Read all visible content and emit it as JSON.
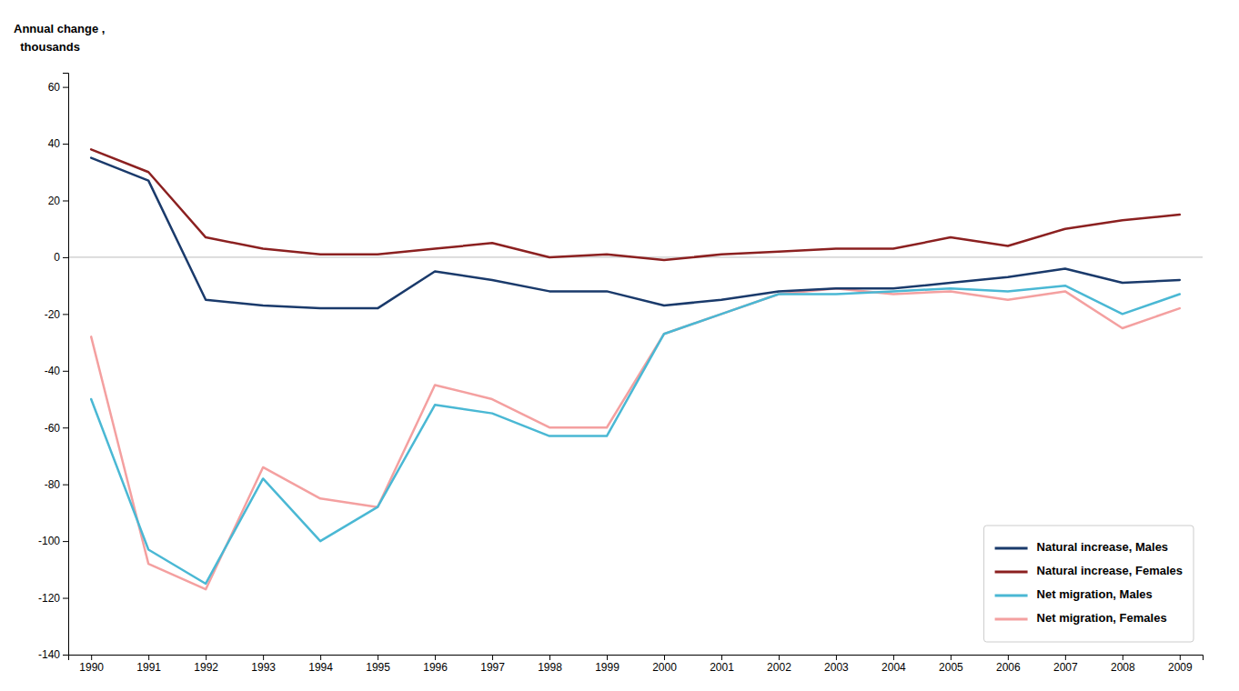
{
  "chart_data": {
    "type": "line",
    "ylabel": [
      "Annual change ,",
      "  thousands"
    ],
    "x": [
      1990,
      1991,
      1992,
      1993,
      1994,
      1995,
      1996,
      1997,
      1998,
      1999,
      2000,
      2001,
      2002,
      2003,
      2004,
      2005,
      2006,
      2007,
      2008,
      2009
    ],
    "series": [
      {
        "name": "Natural increase, Males",
        "color": "#1a3a6b",
        "values": [
          35,
          27,
          -15,
          -17,
          -18,
          -18,
          -5,
          -8,
          -12,
          -12,
          -17,
          -15,
          -12,
          -11,
          -11,
          -9,
          -7,
          -4,
          -9,
          -8
        ]
      },
      {
        "name": "Natural increase, Females",
        "color": "#8b2020",
        "values": [
          38,
          30,
          7,
          3,
          1,
          1,
          3,
          5,
          0,
          1,
          -1,
          1,
          2,
          3,
          3,
          7,
          4,
          10,
          13,
          15
        ]
      },
      {
        "name": "Net migration, Males",
        "color": "#4ab8d4",
        "values": [
          -50,
          -103,
          -115,
          -78,
          -100,
          -88,
          -52,
          -55,
          -63,
          -63,
          -27,
          -20,
          -13,
          -13,
          -12,
          -11,
          -12,
          -10,
          -20,
          -13
        ]
      },
      {
        "name": "Net migration, Females",
        "color": "#f4a0a0",
        "values": [
          -28,
          -108,
          -117,
          -74,
          -85,
          -88,
          -45,
          -50,
          -60,
          -60,
          -27,
          -20,
          -13,
          -11,
          -13,
          -12,
          -15,
          -12,
          -25,
          -18
        ]
      }
    ],
    "xlim": [
      1989.6,
      2009.4
    ],
    "xticks": [
      1990,
      1991,
      1992,
      1993,
      1994,
      1995,
      1996,
      1997,
      1998,
      1999,
      2000,
      2001,
      2002,
      2003,
      2004,
      2005,
      2006,
      2007,
      2008,
      2009
    ],
    "ylim": [
      -140,
      65
    ],
    "yticks": [
      60,
      40,
      20,
      0,
      -20,
      -40,
      -60,
      -80,
      -100,
      -120,
      -140
    ],
    "grid": false,
    "legend": "lower right"
  }
}
